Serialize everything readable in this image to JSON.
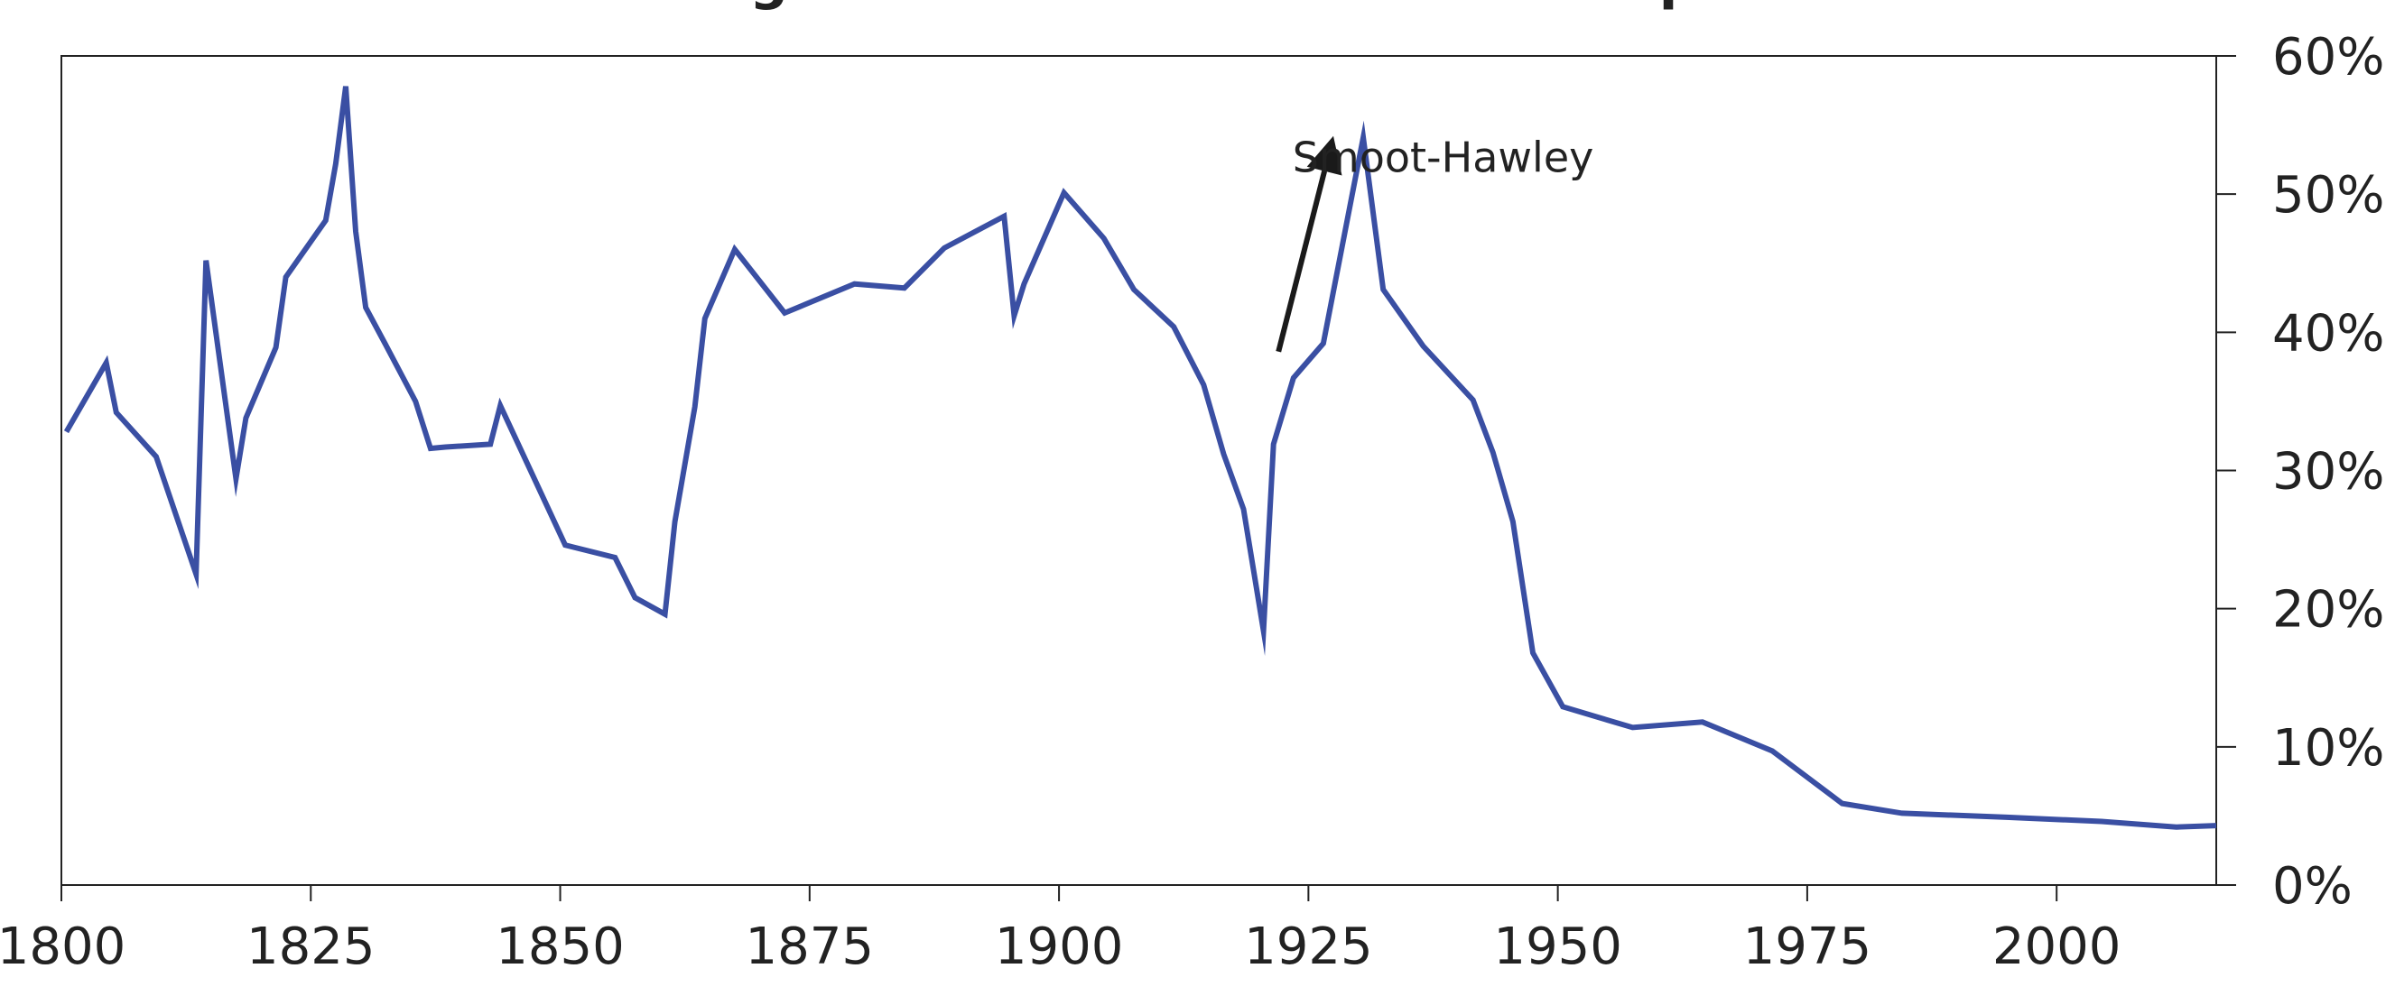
{
  "chart_data": {
    "type": "line",
    "title": "Average Tariff Rates on Dutiable Imports",
    "xlabel": "",
    "ylabel": "",
    "xlim": [
      1800,
      2016
    ],
    "ylim": [
      0,
      60
    ],
    "x_ticks": [
      1800,
      1825,
      1850,
      1875,
      1900,
      1925,
      1950,
      1975,
      2000
    ],
    "x_tick_labels": [
      "1800",
      "1825",
      "1850",
      "1875",
      "1900",
      "1925",
      "1950",
      "1975",
      "2000"
    ],
    "y_ticks": [
      0,
      10,
      20,
      30,
      40,
      50,
      60
    ],
    "y_tick_labels": [
      "0%",
      "10%",
      "20%",
      "30%",
      "40%",
      "50%",
      "60%"
    ],
    "y_axis_side": "right",
    "grid": false,
    "legend": "none",
    "series": [
      {
        "color": "#3A4FA3",
        "x": [
          1800.5,
          1804.5,
          1805.5,
          1809.5,
          1813.5,
          1814.5,
          1817.5,
          1818.5,
          1821.5,
          1822.5,
          1826.5,
          1827.5,
          1828.5,
          1829.5,
          1830.5,
          1832.5,
          1835.5,
          1837.0,
          1838.5,
          1843.0,
          1844.0,
          1850.5,
          1855.5,
          1857.5,
          1860.5,
          1861.5,
          1863.5,
          1864.5,
          1867.5,
          1872.5,
          1879.5,
          1884.5,
          1888.5,
          1894.5,
          1895.5,
          1896.5,
          1900.5,
          1904.5,
          1907.5,
          1911.5,
          1914.5,
          1916.5,
          1918.5,
          1920.5,
          1921.5,
          1923.5,
          1926.5,
          1930.5,
          1932.5,
          1936.5,
          1941.5,
          1943.5,
          1945.5,
          1947.5,
          1950.5,
          1957.5,
          1964.5,
          1971.5,
          1978.5,
          1984.5,
          1995.0,
          2004.5,
          2012.0,
          2016.0
        ],
        "values": [
          32.8,
          37.8,
          34.2,
          31.0,
          22.5,
          45.2,
          29.4,
          33.8,
          38.9,
          44.0,
          48.1,
          52.2,
          57.8,
          47.3,
          41.8,
          39.1,
          35.0,
          31.6,
          31.7,
          31.9,
          34.7,
          24.6,
          23.7,
          20.8,
          19.6,
          26.3,
          34.6,
          41.0,
          46.0,
          41.4,
          43.5,
          43.2,
          46.1,
          48.4,
          41.2,
          43.5,
          50.1,
          46.8,
          43.1,
          40.4,
          36.2,
          31.2,
          27.2,
          18.4,
          31.9,
          36.7,
          39.2,
          54.1,
          43.1,
          39.0,
          35.1,
          31.3,
          26.3,
          16.8,
          12.9,
          11.4,
          11.8,
          9.7,
          5.9,
          5.2,
          4.9,
          4.6,
          4.2,
          4.3
        ]
      }
    ],
    "annotations": [
      {
        "text": "Smoot-Hawley",
        "x": 1938.5,
        "y": 51.6,
        "arrow_from": [
          1922.0,
          38.6
        ],
        "arrow_to": [
          1927.5,
          54.2
        ]
      }
    ]
  }
}
